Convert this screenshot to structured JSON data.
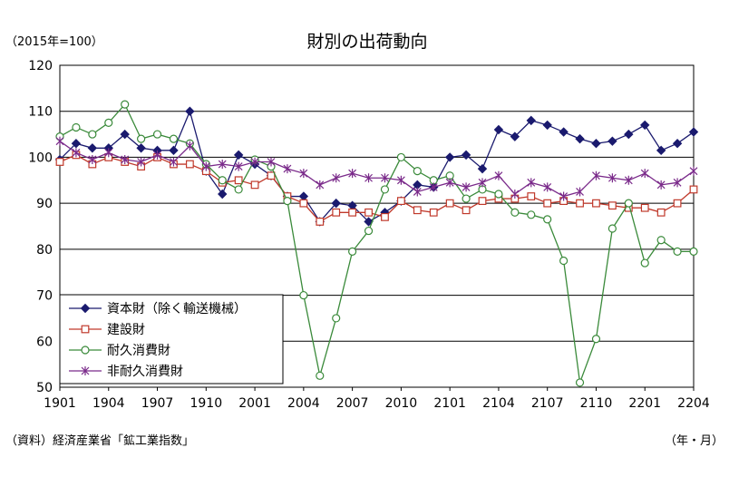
{
  "chart_data": {
    "type": "line",
    "title": "財別の出荷動向",
    "unit_label": "（2015年=100）",
    "source": "（資料）経済産業省「鉱工業指数」",
    "x_axis_label": "（年・月）",
    "ylim": [
      50,
      120
    ],
    "y_ticks": [
      "50",
      "60",
      "70",
      "80",
      "90",
      "100",
      "110",
      "120"
    ],
    "x_tick_labels": [
      "1901",
      "1904",
      "1907",
      "1910",
      "2001",
      "2004",
      "2007",
      "2010",
      "2101",
      "2104",
      "2107",
      "2110",
      "2201",
      "2204"
    ],
    "grid": "horizontal",
    "legend_position": "lower-left",
    "x": [
      "1901",
      "1902",
      "1903",
      "1904",
      "1905",
      "1906",
      "1907",
      "1908",
      "1909",
      "1910",
      "1911",
      "1912",
      "2001",
      "2002",
      "2003",
      "2004",
      "2005",
      "2006",
      "2007",
      "2008",
      "2009",
      "2010",
      "2011",
      "2012",
      "2101",
      "2102",
      "2103",
      "2104",
      "2105",
      "2106",
      "2107",
      "2108",
      "2109",
      "2110",
      "2111",
      "2112",
      "2201",
      "2202",
      "2203",
      "2204"
    ],
    "series": [
      {
        "name": "資本財（除く輸送機械）",
        "color": "#1a1a6e",
        "marker": "diamond",
        "values": [
          99.5,
          103,
          102,
          102,
          105,
          102,
          101.5,
          101.5,
          110,
          97,
          92,
          100.5,
          98.5,
          96,
          91.5,
          91.5,
          86,
          90,
          89.5,
          86,
          88,
          90.5,
          94,
          93.5,
          100,
          100.5,
          97.5,
          106,
          104.5,
          108,
          107,
          105.5,
          104,
          103,
          103.5,
          105,
          107,
          101.5,
          103,
          105.5
        ]
      },
      {
        "name": "建設財",
        "color": "#c0392b",
        "marker": "square",
        "values": [
          99,
          100.5,
          98.5,
          100,
          99,
          98,
          100,
          98.5,
          98.5,
          97,
          94.5,
          95,
          94,
          96,
          91.5,
          90,
          86,
          88,
          88,
          88,
          87,
          90.5,
          88.5,
          88,
          90,
          88.5,
          90.5,
          91,
          91,
          91.5,
          90,
          90.5,
          90,
          90,
          89.5,
          89,
          89,
          88,
          90,
          93
        ]
      },
      {
        "name": "耐久消費財",
        "color": "#3a8a3a",
        "marker": "circle",
        "values": [
          104.5,
          106.5,
          105,
          107.5,
          111.5,
          104,
          105,
          104,
          103,
          98.5,
          95,
          93,
          99.5,
          98,
          90.5,
          70,
          52.5,
          65,
          79.5,
          84,
          93,
          100,
          97,
          95,
          96,
          91,
          93,
          92,
          88,
          87.5,
          86.5,
          77.5,
          51,
          60.5,
          84.5,
          90,
          77,
          82,
          79.5,
          79.5
        ]
      },
      {
        "name": "非耐久消費財",
        "color": "#7a2a8a",
        "marker": "star",
        "values": [
          103.5,
          101,
          99.5,
          101,
          99.5,
          99,
          100.5,
          99,
          102.5,
          98,
          98.5,
          98,
          99,
          99,
          97.5,
          96.5,
          94,
          95.5,
          96.5,
          95.5,
          95.5,
          95,
          92.5,
          93.5,
          94.5,
          93.5,
          94.5,
          96,
          92,
          94.5,
          93.5,
          91.5,
          92.5,
          96,
          95.5,
          95,
          96.5,
          94,
          94.5,
          97
        ]
      }
    ]
  }
}
